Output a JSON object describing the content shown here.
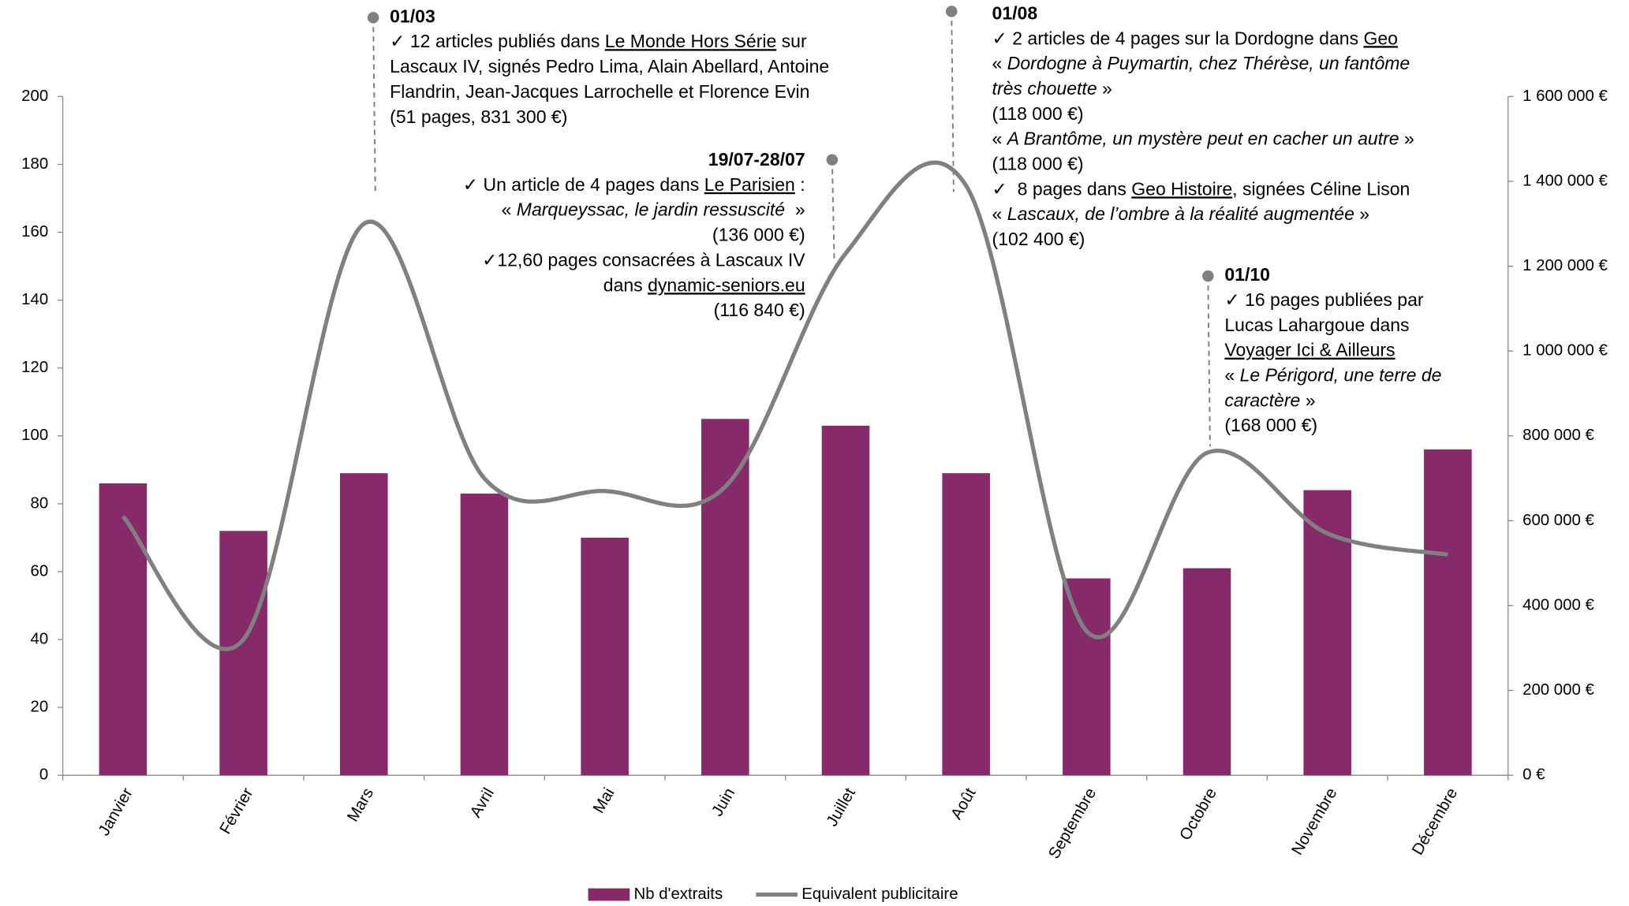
{
  "chart_data": {
    "type": "bar",
    "categories": [
      "Janvier",
      "Février",
      "Mars",
      "Avril",
      "Mai",
      "Juin",
      "Juillet",
      "Août",
      "Septembre",
      "Octobre",
      "Novembre",
      "Décembre"
    ],
    "series": [
      {
        "name": "Nb d'extraits",
        "type": "bar",
        "color": "#862a6a",
        "values": [
          86,
          72,
          89,
          83,
          70,
          105,
          103,
          89,
          58,
          61,
          84,
          96
        ]
      },
      {
        "name": "Equivalent publicitaire",
        "type": "line",
        "smooth": true,
        "axis": "y2",
        "color": "#808080",
        "values": [
          610000,
          320000,
          1300000,
          700000,
          670000,
          680000,
          1230000,
          1390000,
          340000,
          760000,
          570000,
          520000
        ]
      }
    ],
    "ylim": [
      0,
      200
    ],
    "yticks": [
      0,
      20,
      40,
      60,
      80,
      100,
      120,
      140,
      160,
      180,
      200
    ],
    "y2lim": [
      0,
      1600000
    ],
    "y2ticks": [
      {
        "value": 0,
        "label": "0 €"
      },
      {
        "value": 200000,
        "label": "200 000 €"
      },
      {
        "value": 400000,
        "label": "400 000 €"
      },
      {
        "value": 600000,
        "label": "600 000 €"
      },
      {
        "value": 800000,
        "label": "800 000 €"
      },
      {
        "value": 1000000,
        "label": "1 000 000 €"
      },
      {
        "value": 1200000,
        "label": "1 200 000 €"
      },
      {
        "value": 1400000,
        "label": "1 400 000 €"
      },
      {
        "value": 1600000,
        "label": "1 600 000 €"
      }
    ],
    "legend": "bottom",
    "annotations": [
      {
        "date": "01/03",
        "lines": [
          [
            {
              "text": "✓ 12 articles publiés dans "
            },
            {
              "text": "Le Monde Hors Série",
              "style": "underline"
            },
            {
              "text": " sur"
            }
          ],
          [
            {
              "text": "Lascaux IV, signés Pedro Lima, Alain Abellard, Antoine"
            }
          ],
          [
            {
              "text": "Flandrin, Jean-Jacques Larrochelle et Florence Evin"
            }
          ],
          [
            {
              "text": "(51 pages, 831 300 €)"
            }
          ]
        ]
      },
      {
        "date": "19/07-28/07",
        "lines": [
          [
            {
              "text": "✓ Un article de 4 pages dans "
            },
            {
              "text": "Le Parisien",
              "style": "underline"
            },
            {
              "text": " :"
            }
          ],
          [
            {
              "text": "« "
            },
            {
              "text": "Marqueyssac, le jardin ressuscité ",
              "style": "italic"
            },
            {
              "text": " »"
            }
          ],
          [
            {
              "text": "(136 000 €)"
            }
          ],
          [
            {
              "text": "✓12,60 pages consacrées à Lascaux IV"
            }
          ],
          [
            {
              "text": "dans "
            },
            {
              "text": "dynamic-seniors.eu",
              "style": "underline"
            }
          ],
          [
            {
              "text": "(116 840 €)"
            }
          ]
        ]
      },
      {
        "date": "01/08",
        "lines": [
          [
            {
              "text": "✓ 2 articles de 4 pages sur la Dordogne dans "
            },
            {
              "text": "Geo",
              "style": "underline"
            }
          ],
          [
            {
              "text": "« "
            },
            {
              "text": "Dordogne à Puymartin, chez Thérèse, un fantôme",
              "style": "italic"
            }
          ],
          [
            {
              "text": "très chouette",
              "style": "italic"
            },
            {
              "text": " »"
            }
          ],
          [
            {
              "text": "(118 000 €)"
            }
          ],
          [
            {
              "text": "« "
            },
            {
              "text": "A Brantôme, un mystère peut en cacher un autre",
              "style": "italic"
            },
            {
              "text": " »"
            }
          ],
          [
            {
              "text": "(118 000 €)"
            }
          ],
          [
            {
              "text": "✓  8 pages dans "
            },
            {
              "text": "Geo Histoire",
              "style": "underline"
            },
            {
              "text": ", signées Céline Lison"
            }
          ],
          [
            {
              "text": "« "
            },
            {
              "text": "Lascaux, de l’ombre à la réalité augmentée",
              "style": "italic"
            },
            {
              "text": " »"
            }
          ],
          [
            {
              "text": "(102 400 €)"
            }
          ]
        ]
      },
      {
        "date": "01/10",
        "lines": [
          [
            {
              "text": "✓ 16 pages publiées par"
            }
          ],
          [
            {
              "text": "Lucas Lahargoue dans"
            }
          ],
          [
            {
              "text": "Voyager Ici & Ailleurs",
              "style": "underline"
            }
          ],
          [
            {
              "text": "« "
            },
            {
              "text": "Le Périgord, une terre de",
              "style": "italic"
            }
          ],
          [
            {
              "text": "caractère",
              "style": "italic"
            },
            {
              "text": " »"
            }
          ],
          [
            {
              "text": "(168 000 €)"
            }
          ]
        ]
      }
    ]
  }
}
